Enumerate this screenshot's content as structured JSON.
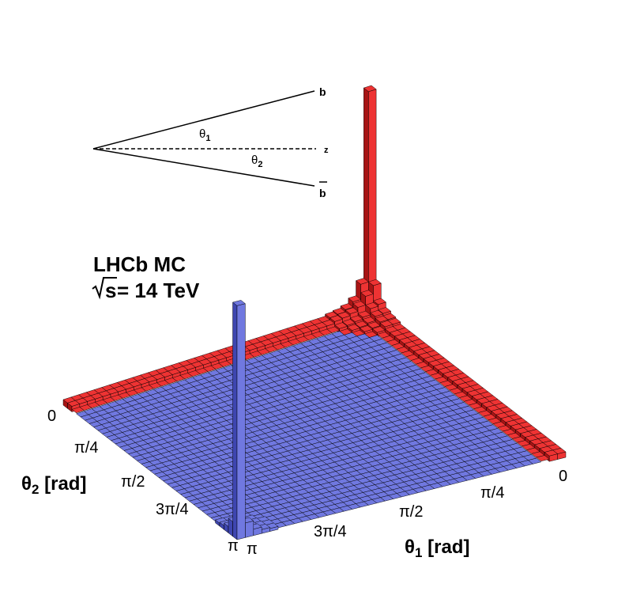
{
  "chart_data": {
    "type": "lego3d",
    "x_axis": {
      "symbol": "θ",
      "subscript": "1",
      "unit": " [rad]",
      "ticks": [
        "0",
        "π/4",
        "π/2",
        "3π/4",
        "π"
      ],
      "range": [
        0,
        3.1416
      ]
    },
    "y_axis": {
      "symbol": "θ",
      "subscript": "2",
      "unit": " [rad]",
      "ticks": [
        "0",
        "π/4",
        "π/2",
        "3π/4",
        "π"
      ],
      "range": [
        0,
        3.1416
      ]
    },
    "annotations": {
      "experiment": "LHCb MC",
      "energy_prefix": "s",
      "energy_value": " = 14 TeV"
    },
    "inset": {
      "b_label": "b",
      "bbar_label": "b",
      "z_label": "z",
      "theta1_symbol": "θ",
      "theta1_sub": "1",
      "theta2_symbol": "θ",
      "theta2_sub": "2"
    },
    "colors": {
      "forward": "#ee3333",
      "forward_dark": "#a81414",
      "central": "#7078e0",
      "central_dark": "#3e46b0"
    },
    "peaks": [
      {
        "name": "forward-forward",
        "theta1": 0.05,
        "theta2": 0.05,
        "relative_height": 1.0,
        "color": "forward"
      },
      {
        "name": "backward-backward",
        "theta1": 3.09,
        "theta2": 3.09,
        "relative_height": 0.93,
        "color": "central"
      }
    ],
    "grid_bins": 40
  }
}
